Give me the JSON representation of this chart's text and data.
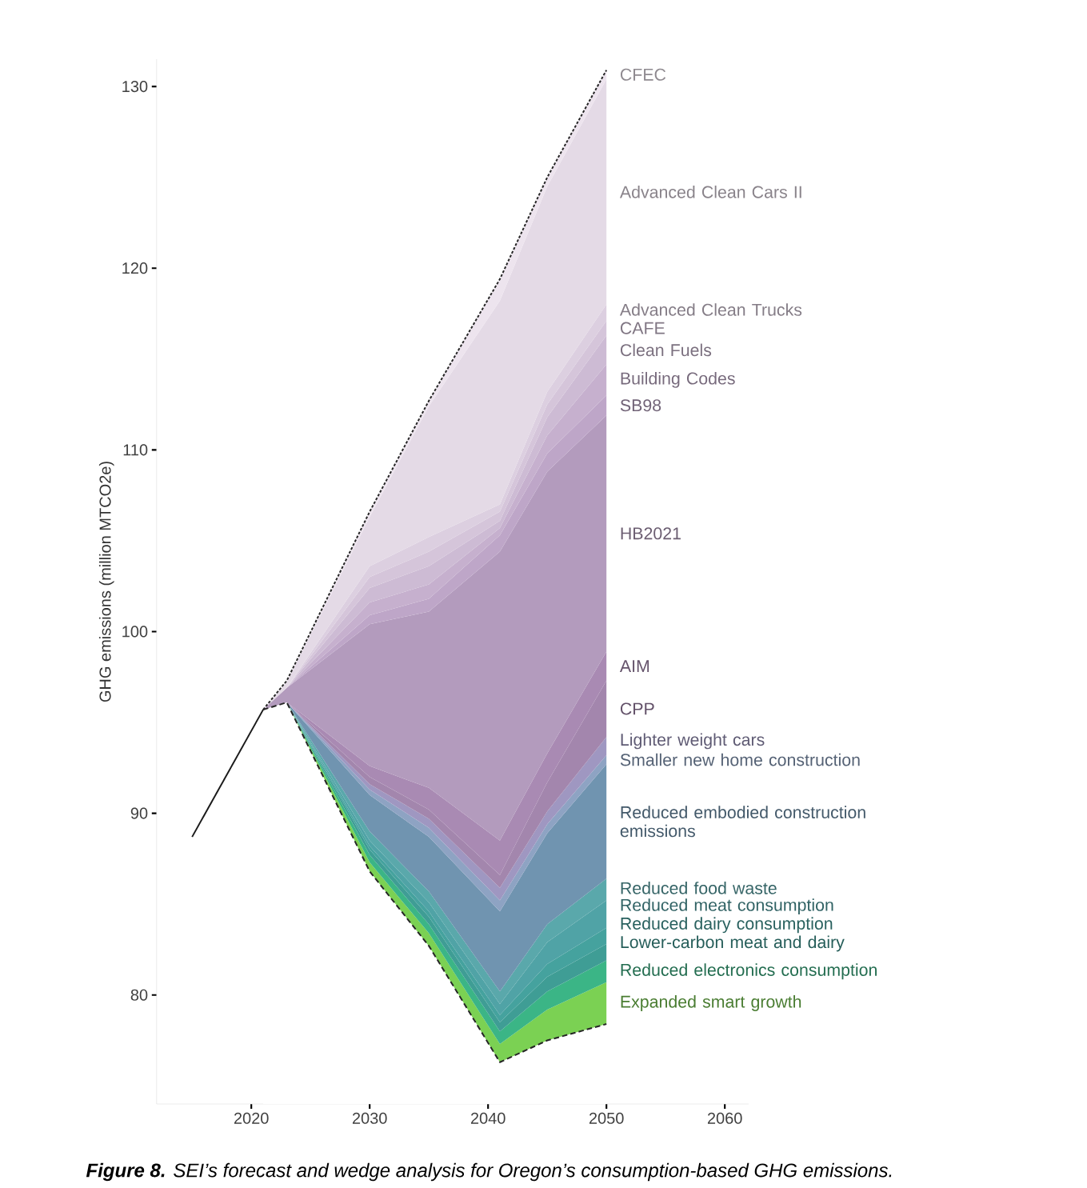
{
  "chart_data": {
    "type": "area",
    "ylabel": "GHG emissions (million MTCO2e)",
    "x": [
      2021,
      2023,
      2030,
      2035,
      2041,
      2045,
      2050
    ],
    "xlim": [
      2012,
      2062
    ],
    "xticks": [
      2020,
      2030,
      2040,
      2050,
      2060
    ],
    "ylim": [
      74,
      131.5
    ],
    "yticks": [
      80,
      90,
      100,
      110,
      120,
      130
    ],
    "annotations": [
      "**Figure 8.** SEI’s forecast and wedge analysis for Oregon’s consumption-based GHG emissions."
    ],
    "series": [
      {
        "type": "line",
        "line_style": "solid",
        "color": "#1a1a1a",
        "x": [
          2015,
          2021
        ],
        "values": [
          88.7,
          95.7
        ]
      },
      {
        "line_style": "dashed",
        "color": "#ffffff",
        "values": [
          95.7,
          96.1,
          86.8,
          82.7,
          76.3,
          77.5,
          78.4
        ]
      },
      {
        "name": "Expanded smart growth",
        "color": "#7bd153",
        "values": [
          95.7,
          96.1,
          87.3,
          83.4,
          77.3,
          79.2,
          80.7
        ]
      },
      {
        "name": "Reduced electronics consumption",
        "color": "#3bb586",
        "values": [
          95.7,
          96.1,
          87.7,
          83.9,
          78.0,
          80.2,
          81.9
        ]
      },
      {
        "name": "Lower-carbon meat and dairy",
        "color": "#3f9d95",
        "values": [
          95.7,
          96.1,
          88.0,
          84.3,
          78.5,
          81.0,
          82.8
        ]
      },
      {
        "name": "Reduced dairy consumption",
        "color": "#45a29e",
        "values": [
          95.7,
          96.1,
          88.2,
          84.6,
          78.9,
          81.7,
          83.7
        ]
      },
      {
        "name": "Reduced meat consumption",
        "color": "#50a3a6",
        "values": [
          95.7,
          96.1,
          88.5,
          85.1,
          79.5,
          82.9,
          85.2
        ]
      },
      {
        "name": "Reduced food waste",
        "color": "#5aa8ab",
        "values": [
          95.7,
          96.1,
          89.0,
          85.7,
          80.2,
          83.9,
          86.4
        ]
      },
      {
        "name": "Reduced embodied construction emissions",
        "color": "#7094b0",
        "values": [
          95.7,
          96.1,
          91.0,
          88.7,
          84.6,
          88.9,
          92.7
        ]
      },
      {
        "name": "Smaller new home construction",
        "color": "#8ea3c3",
        "values": [
          95.7,
          96.1,
          91.3,
          89.2,
          85.2,
          89.4,
          93.2
        ]
      },
      {
        "name": "Lighter weight cars",
        "color": "#9f97c1",
        "values": [
          95.7,
          96.1,
          91.6,
          89.7,
          85.9,
          90.1,
          94.2
        ]
      },
      {
        "name": "CPP",
        "color": "#a386ad",
        "values": [
          95.7,
          96.1,
          92.0,
          90.2,
          86.6,
          91.7,
          97.3
        ]
      },
      {
        "name": "AIM",
        "color": "#a98ab3",
        "values": [
          95.7,
          96.1,
          92.6,
          91.4,
          88.5,
          93.3,
          98.9
        ]
      },
      {
        "name": "HB2021",
        "color": "#b39bbd",
        "values": [
          95.7,
          96.9,
          100.4,
          101.1,
          104.4,
          108.8,
          111.9
        ]
      },
      {
        "name": "SB98",
        "color": "#bea6c8",
        "values": [
          95.7,
          96.9,
          100.9,
          101.8,
          105.3,
          109.8,
          113.0
        ]
      },
      {
        "name": "Building Codes",
        "color": "#c6b0ce",
        "values": [
          95.7,
          96.9,
          101.6,
          102.6,
          105.7,
          110.8,
          114.7
        ]
      },
      {
        "name": "Clean Fuels",
        "color": "#cdbbd4",
        "values": [
          95.7,
          96.9,
          102.4,
          103.6,
          106.1,
          111.8,
          116.3
        ]
      },
      {
        "name": "CAFE",
        "color": "#d5c5da",
        "values": [
          95.7,
          96.9,
          103.0,
          104.4,
          106.6,
          112.5,
          117.1
        ]
      },
      {
        "name": "Advanced Clean Trucks",
        "color": "#dccfe0",
        "values": [
          95.7,
          96.9,
          103.6,
          105.2,
          107.0,
          113.2,
          118.0
        ]
      },
      {
        "name": "Advanced Clean Cars II",
        "color": "#e4dae6",
        "values": [
          95.7,
          97.2,
          106.3,
          112.4,
          118.2,
          124.5,
          130.4
        ]
      },
      {
        "name": "CFEC",
        "line_style": "dotted",
        "color": "#ede4ee",
        "values": [
          95.7,
          97.3,
          106.6,
          112.7,
          119.4,
          125.0,
          130.9
        ]
      }
    ]
  }
}
